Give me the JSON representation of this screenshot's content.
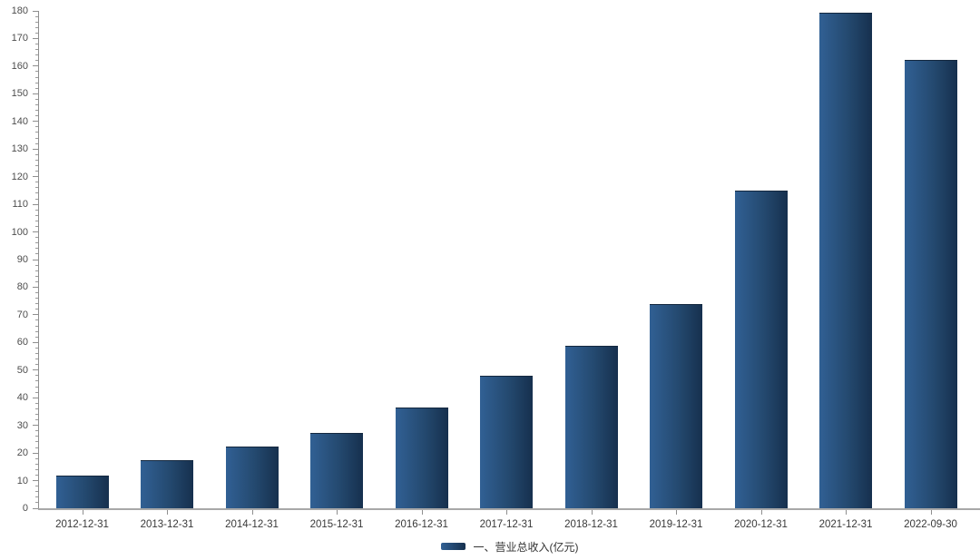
{
  "chart_data": {
    "type": "bar",
    "title": "",
    "xlabel": "",
    "ylabel": "",
    "categories": [
      "2012-12-31",
      "2013-12-31",
      "2014-12-31",
      "2015-12-31",
      "2016-12-31",
      "2017-12-31",
      "2018-12-31",
      "2019-12-31",
      "2020-12-31",
      "2021-12-31",
      "2022-09-30"
    ],
    "values": [
      11.8,
      17.3,
      22.2,
      27.4,
      36.6,
      47.8,
      58.7,
      73.9,
      115.1,
      179.4,
      162.3
    ],
    "series_name": "一、营业总收入(亿元)",
    "ylim": [
      0,
      180
    ],
    "y_tick_step": 10,
    "y_minor_tick_step": 2,
    "grid": false,
    "legend_position": "bottom-center",
    "colors": {
      "bar_gradient_left": "#316094",
      "bar_gradient_mid": "#24496f",
      "bar_gradient_right": "#16304e",
      "axis": "#8f8f8f",
      "y_label": "#4d4d4d",
      "x_label": "#383838",
      "legend_text": "#333333",
      "background": "#ffffff"
    }
  }
}
